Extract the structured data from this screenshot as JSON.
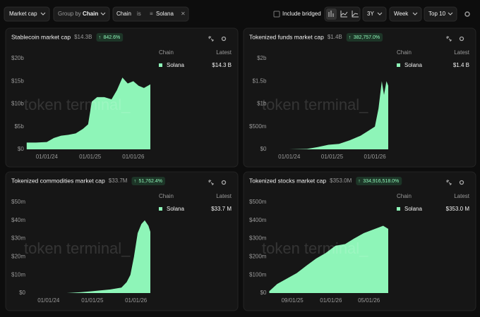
{
  "toolbar": {
    "metric": "Market cap",
    "group_label": "Group by",
    "group_value": "Chain",
    "filter_field": "Chain",
    "filter_op": "is",
    "filter_value": "Solana",
    "include_bridged": "Include bridged",
    "range": "3Y",
    "interval": "Week",
    "top": "Top 10"
  },
  "chart_data": [
    {
      "type": "area",
      "title": "Stablecoin market cap",
      "headline": "$14.3B",
      "change": "842.6%",
      "legend_title": "Chain",
      "latest_title": "Latest",
      "watermark": "token terminal_",
      "x": [
        "07/15/23",
        "10/01/23",
        "01/01/24",
        "03/01/24",
        "05/01/24",
        "07/01/24",
        "09/01/24",
        "11/01/24",
        "12/15/24",
        "01/15/25",
        "03/01/25",
        "05/01/25",
        "07/01/25",
        "08/15/25",
        "10/01/25",
        "11/15/25",
        "01/01/26",
        "02/15/26",
        "04/01/26",
        "05/25/26"
      ],
      "series": [
        {
          "name": "Solana",
          "color": "#8ef5b8",
          "latest_label": "$14.3 B",
          "values": [
            1.5,
            1.5,
            1.6,
            2.5,
            3.0,
            3.2,
            3.5,
            4.5,
            5.5,
            10.5,
            11.5,
            11.5,
            11.0,
            13.0,
            15.8,
            14.5,
            15.0,
            14.0,
            13.5,
            14.3
          ]
        }
      ],
      "xlim": [
        "07/15/23",
        "05/25/26"
      ],
      "xticks": [
        "01/01/24",
        "01/01/25",
        "01/01/26"
      ],
      "ylim": [
        0,
        20
      ],
      "yticks": [
        {
          "value": 0,
          "label": "$0"
        },
        {
          "value": 5,
          "label": "$5b"
        },
        {
          "value": 10,
          "label": "$10b"
        },
        {
          "value": 15,
          "label": "$15b"
        },
        {
          "value": 20,
          "label": "$20b"
        }
      ]
    },
    {
      "type": "area",
      "title": "Tokenized funds market cap",
      "headline": "$1.4B",
      "change": "382,757.0%",
      "legend_title": "Chain",
      "latest_title": "Latest",
      "watermark": "token terminal_",
      "x": [
        "07/15/23",
        "01/01/24",
        "06/01/24",
        "09/01/24",
        "12/01/24",
        "03/01/25",
        "06/01/25",
        "09/01/25",
        "11/01/25",
        "01/01/26",
        "02/01/26",
        "03/01/26",
        "03/20/26",
        "04/10/26",
        "04/25/26"
      ],
      "series": [
        {
          "name": "Solana",
          "color": "#8ef5b8",
          "latest_label": "$1.4 B",
          "values": [
            0,
            0,
            0.01,
            0.05,
            0.1,
            0.12,
            0.2,
            0.3,
            0.4,
            0.5,
            0.9,
            1.5,
            1.2,
            1.5,
            1.4
          ]
        }
      ],
      "xlim": [
        "07/15/23",
        "04/25/26"
      ],
      "xticks": [
        "01/01/24",
        "01/01/25",
        "01/01/26"
      ],
      "ylim": [
        0,
        2
      ],
      "yticks": [
        {
          "value": 0,
          "label": "$0"
        },
        {
          "value": 0.5,
          "label": "$500m"
        },
        {
          "value": 1,
          "label": "$1b"
        },
        {
          "value": 1.5,
          "label": "$1.5b"
        },
        {
          "value": 2,
          "label": "$2b"
        }
      ]
    },
    {
      "type": "area",
      "title": "Tokenized commodities market cap",
      "headline": "$33.7M",
      "change": "51,762.4%",
      "legend_title": "Chain",
      "latest_title": "Latest",
      "watermark": "token terminal_",
      "x": [
        "07/15/23",
        "01/01/24",
        "06/01/24",
        "10/01/24",
        "01/01/25",
        "06/01/25",
        "09/01/25",
        "10/15/25",
        "11/15/25",
        "12/15/25",
        "01/15/26",
        "02/15/26",
        "03/15/26",
        "04/15/26",
        "05/01/26"
      ],
      "series": [
        {
          "name": "Solana",
          "color": "#8ef5b8",
          "latest_label": "$33.7 M",
          "values": [
            0,
            0,
            0,
            0.5,
            1,
            2,
            3,
            6,
            10,
            20,
            33,
            38,
            40,
            37,
            33.7
          ]
        }
      ],
      "xlim": [
        "07/15/23",
        "05/01/26"
      ],
      "xticks": [
        "01/01/24",
        "01/01/25",
        "01/01/26"
      ],
      "ylim": [
        0,
        50
      ],
      "yticks": [
        {
          "value": 0,
          "label": "$0"
        },
        {
          "value": 10,
          "label": "$10m"
        },
        {
          "value": 20,
          "label": "$20m"
        },
        {
          "value": 30,
          "label": "$30m"
        },
        {
          "value": 40,
          "label": "$40m"
        },
        {
          "value": 50,
          "label": "$50m"
        }
      ]
    },
    {
      "type": "area",
      "title": "Tokenized stocks market cap",
      "headline": "$353.0M",
      "change": "334,916,518.0%",
      "legend_title": "Chain",
      "latest_title": "Latest",
      "watermark": "token terminal_",
      "x": [
        "06/20/25",
        "07/15/25",
        "08/15/25",
        "09/15/25",
        "10/15/25",
        "11/15/25",
        "12/15/25",
        "01/15/26",
        "02/15/26",
        "03/15/26",
        "04/15/26",
        "05/15/26",
        "06/15/26",
        "07/01/26"
      ],
      "series": [
        {
          "name": "Solana",
          "color": "#8ef5b8",
          "latest_label": "$353.0 M",
          "values": [
            10,
            50,
            80,
            110,
            150,
            190,
            220,
            260,
            270,
            300,
            330,
            350,
            370,
            353
          ]
        }
      ],
      "xlim": [
        "06/20/25",
        "07/01/26"
      ],
      "xticks": [
        "09/01/25",
        "01/01/26",
        "05/01/26"
      ],
      "ylim": [
        0,
        500
      ],
      "yticks": [
        {
          "value": 0,
          "label": "$0"
        },
        {
          "value": 100,
          "label": "$100m"
        },
        {
          "value": 200,
          "label": "$200m"
        },
        {
          "value": 300,
          "label": "$300m"
        },
        {
          "value": 400,
          "label": "$400m"
        },
        {
          "value": 500,
          "label": "$500m"
        }
      ]
    }
  ]
}
